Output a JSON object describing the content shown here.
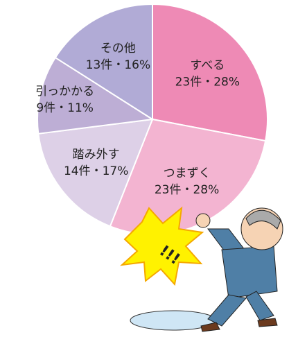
{
  "chart_data": {
    "type": "pie",
    "categories": [
      "すべる",
      "つまずく",
      "踏み外す",
      "引っかかる",
      "その他"
    ],
    "values": [
      28,
      28,
      17,
      11,
      16
    ],
    "value_labels": [
      "23件・28%",
      "23件・28%",
      "14件・17%",
      "9件・11%",
      "13件・16%"
    ],
    "colors": [
      "#ee8ab5",
      "#f3b4d1",
      "#ddd0e7",
      "#bdaed5",
      "#b1abd6"
    ]
  }
}
